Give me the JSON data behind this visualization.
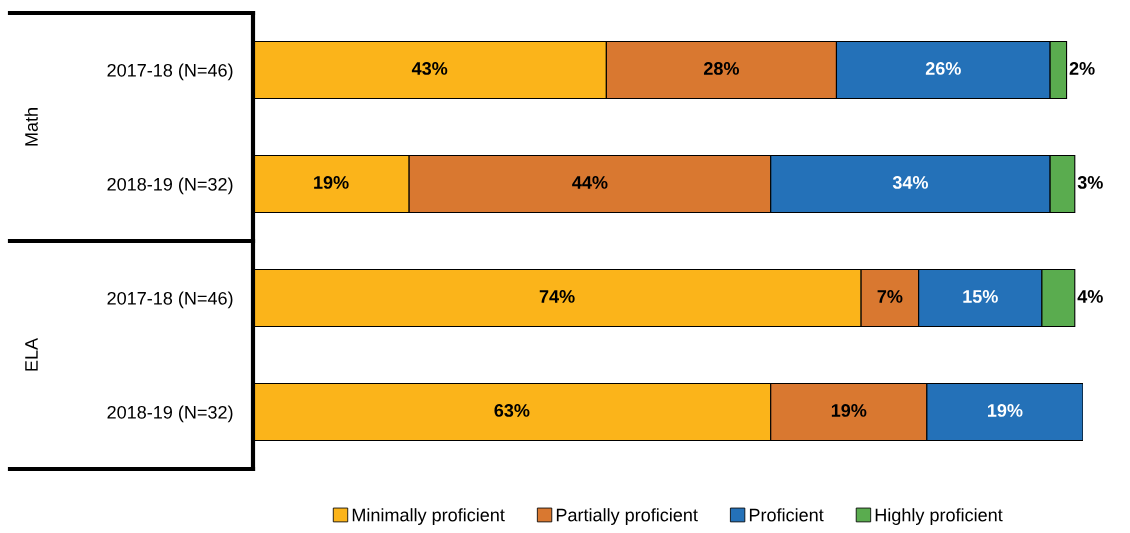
{
  "chart_data": {
    "type": "bar",
    "orientation": "horizontal",
    "stacked": true,
    "categories": [
      "2017-18 (N=46)",
      "2018-19 (N=32)",
      "2017-18 (N=46)",
      "2018-19 (N=32)"
    ],
    "series": [
      {
        "name": "Minimally proficient",
        "color": "#fbb41a",
        "values": [
          43,
          19,
          74,
          63
        ],
        "value_labels": [
          "43%",
          "19%",
          "74%",
          "63%"
        ]
      },
      {
        "name": "Partially proficient",
        "color": "#d97830",
        "values": [
          28,
          44,
          7,
          19
        ],
        "value_labels": [
          "28%",
          "44%",
          "7%",
          "19%"
        ]
      },
      {
        "name": "Proficient",
        "color": "#2471b8",
        "values": [
          26,
          34,
          15,
          19
        ],
        "value_labels": [
          "26%",
          "34%",
          "15%",
          "19%"
        ]
      },
      {
        "name": "Highly proficient",
        "color": "#5aac4f",
        "values": [
          2,
          3,
          4,
          null
        ],
        "value_labels": [
          "2%",
          "3%",
          "4%",
          null
        ]
      }
    ],
    "annotations": [
      "Math",
      "ELA"
    ],
    "legend": "bottom",
    "grid": false
  }
}
